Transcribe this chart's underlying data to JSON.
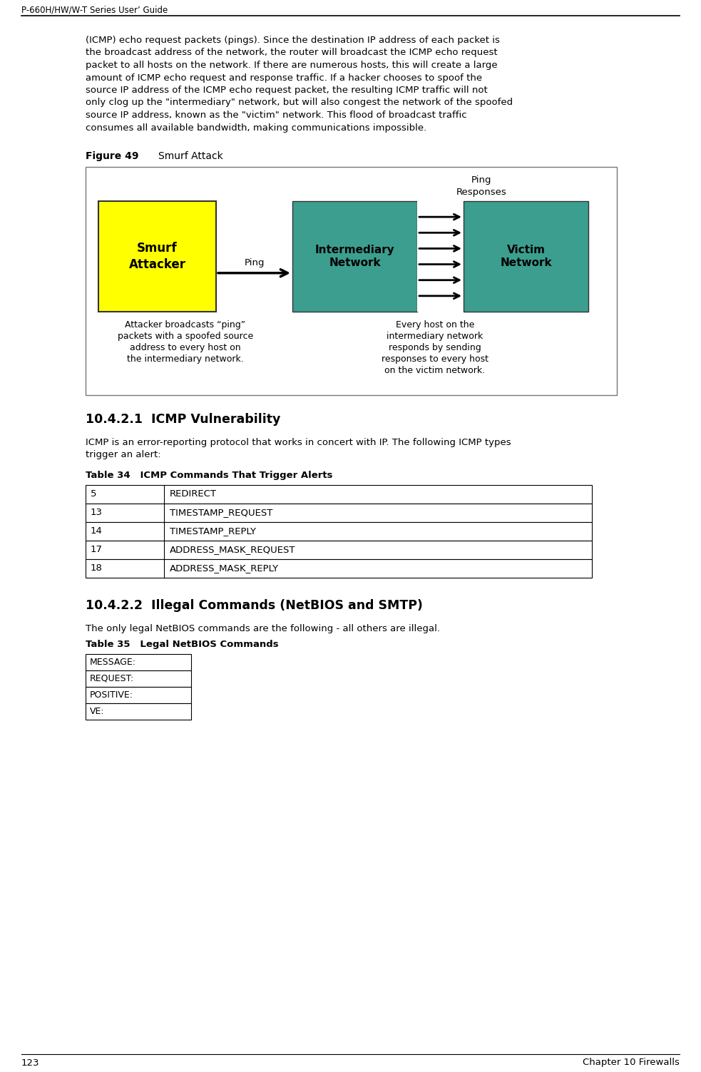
{
  "page_title": "P-660H/HW/W-T Series User’ Guide",
  "page_number": "123",
  "chapter": "Chapter 10 Firewalls",
  "body_text_lines": [
    "(ICMP) echo request packets (pings). Since the destination IP address of each packet is",
    "the broadcast address of the network, the router will broadcast the ICMP echo request",
    "packet to all hosts on the network. If there are numerous hosts, this will create a large",
    "amount of ICMP echo request and response traffic. If a hacker chooses to spoof the",
    "source IP address of the ICMP echo request packet, the resulting ICMP traffic will not",
    "only clog up the \"intermediary\" network, but will also congest the network of the spoofed",
    "source IP address, known as the \"victim\" network. This flood of broadcast traffic",
    "consumes all available bandwidth, making communications impossible."
  ],
  "figure_label": "Figure 49",
  "figure_title": "Smurf Attack",
  "yellow_box_color": "#FFFF00",
  "teal_box_color": "#3C9E8E",
  "smurf_attacker_label": "Smurf\nAttacker",
  "intermediary_label": "Intermediary\nNetwork",
  "victim_label": "Victim\nNetwork",
  "ping_label": "Ping",
  "ping_responses_label": "Ping\nResponses",
  "caption_left_lines": [
    "Attacker broadcasts “ping”",
    "packets with a spoofed source",
    "address to every host on",
    "the intermediary network."
  ],
  "caption_right_lines": [
    "Every host on the",
    "intermediary network",
    "responds by sending",
    "responses to every host",
    "on the victim network."
  ],
  "section_title_1": "10.4.2.1  ICMP Vulnerability",
  "section_text_1_lines": [
    "ICMP is an error-reporting protocol that works in concert with IP. The following ICMP types",
    "trigger an alert:"
  ],
  "table34_title": "Table 34   ICMP Commands That Trigger Alerts",
  "table34_data": [
    [
      "5",
      "REDIRECT"
    ],
    [
      "13",
      "TIMESTAMP_REQUEST"
    ],
    [
      "14",
      "TIMESTAMP_REPLY"
    ],
    [
      "17",
      "ADDRESS_MASK_REQUEST"
    ],
    [
      "18",
      "ADDRESS_MASK_REPLY"
    ]
  ],
  "section_title_2": "10.4.2.2  Illegal Commands (NetBIOS and SMTP)",
  "section_text_2": "The only legal NetBIOS commands are the following - all others are illegal.",
  "table35_title": "Table 35   Legal NetBIOS Commands",
  "table35_data": [
    "MESSAGE:",
    "REQUEST:",
    "POSITIVE:",
    "VE:"
  ],
  "bg_color": "#FFFFFF"
}
